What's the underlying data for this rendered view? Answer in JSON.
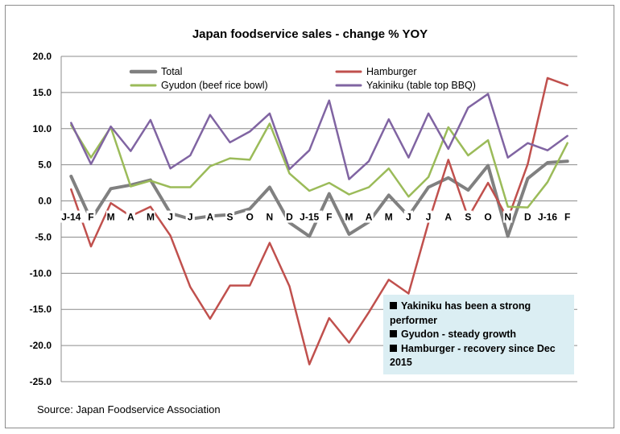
{
  "chart_data": {
    "type": "line",
    "title": "Japan foodservice sales - change % YOY",
    "xlabel": "",
    "ylabel": "",
    "ylim": [
      -25,
      20
    ],
    "yticks": [
      "20.0",
      "15.0",
      "10.0",
      "5.0",
      "0.0",
      "-5.0",
      "-10.0",
      "-15.0",
      "-20.0",
      "-25.0"
    ],
    "categories": [
      "J-14",
      "F",
      "M",
      "A",
      "M",
      "J",
      "J",
      "A",
      "S",
      "O",
      "N",
      "D",
      "J-15",
      "F",
      "M",
      "A",
      "M",
      "J",
      "J",
      "A",
      "S",
      "O",
      "N",
      "D",
      "J-16",
      "F"
    ],
    "grid": true,
    "legend": "top",
    "series": [
      {
        "name": "Total",
        "color": "#808080",
        "width": 4,
        "values": [
          3.4,
          -2.6,
          1.7,
          2.2,
          2.9,
          -1.7,
          -2.5,
          -2.1,
          -1.9,
          -1.1,
          1.9,
          -3.0,
          -4.9,
          1.0,
          -4.6,
          -2.9,
          0.8,
          -2.1,
          1.9,
          3.2,
          1.5,
          4.9,
          -4.9,
          3.1,
          5.3,
          5.5
        ]
      },
      {
        "name": "Hamburger",
        "color": "#c0504d",
        "width": 2.5,
        "values": [
          1.6,
          -6.3,
          -0.3,
          -2.1,
          -0.8,
          -4.8,
          -11.9,
          -16.3,
          -11.7,
          -11.7,
          -5.8,
          -11.8,
          -22.6,
          -16.2,
          -19.6,
          -15.4,
          -10.9,
          -12.8,
          -3.0,
          5.7,
          -2.3,
          2.5,
          -2.5,
          5.1,
          17.0,
          16.0
        ]
      },
      {
        "name": "Gyudon (beef rice bowl)",
        "color": "#9bbb59",
        "width": 2.5,
        "values": [
          10.5,
          6.0,
          10.2,
          2.0,
          2.8,
          1.9,
          1.9,
          4.8,
          5.9,
          5.7,
          10.7,
          3.8,
          1.4,
          2.5,
          0.9,
          1.9,
          4.5,
          0.6,
          3.3,
          10.2,
          6.3,
          8.4,
          -0.8,
          -0.9,
          2.6,
          8.0
        ]
      },
      {
        "name": "Yakiniku (table top BBQ)",
        "color": "#8064a2",
        "width": 2.5,
        "values": [
          10.8,
          5.1,
          10.3,
          6.9,
          11.2,
          4.5,
          6.3,
          11.9,
          8.1,
          9.6,
          12.1,
          4.4,
          7.0,
          13.9,
          3.0,
          5.5,
          11.3,
          6.0,
          12.1,
          7.2,
          12.9,
          14.8,
          6.0,
          8.0,
          7.0,
          9.0
        ]
      }
    ],
    "annotation": [
      "Yakiniku has been a strong performer",
      "Gyudon - steady growth",
      "Hamburger - recovery since Dec 2015"
    ]
  },
  "source": "Source: Japan Foodservice Association"
}
